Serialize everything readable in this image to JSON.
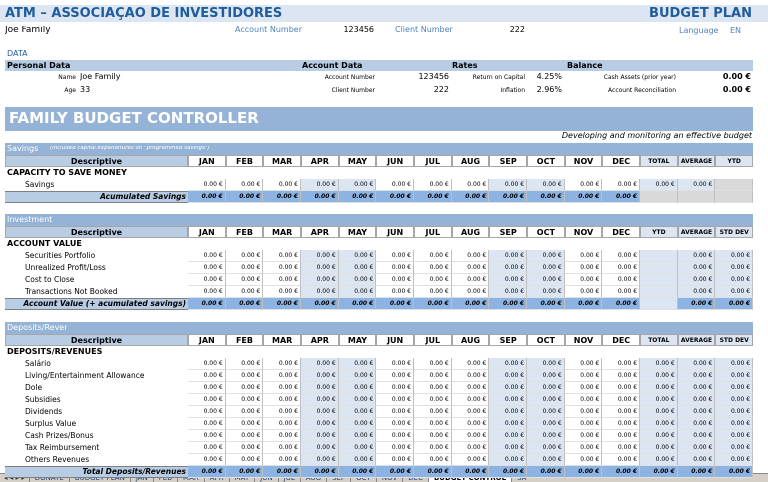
{
  "header": {
    "org": "ATM – ASSOCIAÇÃO DE INVESTIDORES",
    "plan": "BUDGET PLAN",
    "family": "Joe Family",
    "account_label": "Account Number",
    "account_number": "123456",
    "client_label": "Client Number",
    "client_number": "222",
    "language_label": "Language",
    "language": "EN"
  },
  "data": {
    "title": "DATA",
    "headers": [
      "Personal Data",
      "Account Data",
      "Rates",
      "Balance"
    ],
    "personal": [
      [
        "Name",
        "Joe Family"
      ],
      [
        "Age",
        "33"
      ]
    ],
    "account": [
      [
        "Account Number",
        "123456"
      ],
      [
        "Client Number",
        "222"
      ]
    ],
    "rates": [
      [
        "Return on Capital",
        "4.25%"
      ],
      [
        "Inflation",
        "2.96%"
      ]
    ],
    "balance": [
      [
        "Cash Assets (prior year)",
        "0.00 €"
      ],
      [
        "Account Reconciliation",
        "0.00 €"
      ]
    ]
  },
  "controller": {
    "title": "FAMILY BUDGET CONTROLLER",
    "subtitle": "Developing and monitoring an effective budget",
    "sections": [
      {
        "title": "Savings",
        "note": "(included capital expenditures on \"programmed savings\")",
        "header": [
          "Descriptive",
          "JAN",
          "FEB",
          "MAR",
          "APR",
          "MAY",
          "JUN",
          "JUL",
          "AUG",
          "SEP",
          "OCT",
          "NOV",
          "DEC",
          "TOTAL",
          "AVERAGE",
          "YTD"
        ],
        "group": "CAPACITY TO SAVE MONEY",
        "rows": [
          {
            "label": "Savings",
            "cells": [
              "0.00 €",
              "0.00 €",
              "0.00 €",
              "0.00 €",
              "0.00 €",
              "0.00 €",
              "0.00 €",
              "0.00 €",
              "0.00 €",
              "0.00 €",
              "0.00 €",
              "0.00 €",
              "0.00 €",
              "0.00 €",
              null
            ]
          }
        ],
        "total": {
          "label": "Acumulated Savings",
          "cells": [
            "0.00 €",
            "0.00 €",
            "0.00 €",
            "0.00 €",
            "0.00 €",
            "0.00 €",
            "0.00 €",
            "0.00 €",
            "0.00 €",
            "0.00 €",
            "0.00 €",
            "0.00 €",
            null,
            null,
            null
          ]
        }
      },
      {
        "title": "Investment",
        "header": [
          "Descriptive",
          "JAN",
          "FEB",
          "MAR",
          "APR",
          "MAY",
          "JUN",
          "JUL",
          "AUG",
          "SEP",
          "OCT",
          "NOV",
          "DEC",
          "YTD",
          "AVERAGE",
          "STD DEV"
        ],
        "group": "ACCOUNT VALUE",
        "rows": [
          {
            "label": "Securities Portfolio",
            "cells": [
              "0.00 €",
              "0.00 €",
              "0.00 €",
              "0.00 €",
              "0.00 €",
              "0.00 €",
              "0.00 €",
              "0.00 €",
              "0.00 €",
              "0.00 €",
              "0.00 €",
              "0.00 €",
              null,
              "0.00 €",
              "0.00 €"
            ]
          },
          {
            "label": "Unrealized Profit/Loss",
            "cells": [
              "0.00 €",
              "0.00 €",
              "0.00 €",
              "0.00 €",
              "0.00 €",
              "0.00 €",
              "0.00 €",
              "0.00 €",
              "0.00 €",
              "0.00 €",
              "0.00 €",
              "0.00 €",
              null,
              "0.00 €",
              "0.00 €"
            ]
          },
          {
            "label": "Cost to Close",
            "cells": [
              "0.00 €",
              "0.00 €",
              "0.00 €",
              "0.00 €",
              "0.00 €",
              "0.00 €",
              "0.00 €",
              "0.00 €",
              "0.00 €",
              "0.00 €",
              "0.00 €",
              "0.00 €",
              null,
              "0.00 €",
              "0.00 €"
            ]
          },
          {
            "label": "Transactions Not Booked",
            "cells": [
              "0.00 €",
              "0.00 €",
              "0.00 €",
              "0.00 €",
              "0.00 €",
              "0.00 €",
              "0.00 €",
              "0.00 €",
              "0.00 €",
              "0.00 €",
              "0.00 €",
              "0.00 €",
              null,
              "0.00 €",
              "0.00 €"
            ]
          }
        ],
        "total": {
          "label": "Account Value (+ acumulated savings)",
          "cells": [
            "0.00 €",
            "0.00 €",
            "0.00 €",
            "0.00 €",
            "0.00 €",
            "0.00 €",
            "0.00 €",
            "0.00 €",
            "0.00 €",
            "0.00 €",
            "0.00 €",
            "0.00 €",
            null,
            "0.00 €",
            "0.00 €"
          ]
        }
      },
      {
        "title": "Deposits/Revenues",
        "header": [
          "Descriptive",
          "JAN",
          "FEB",
          "MAR",
          "APR",
          "MAY",
          "JUN",
          "JUL",
          "AUG",
          "SEP",
          "OCT",
          "NOV",
          "DEC",
          "TOTAL",
          "AVERAGE",
          "STD DEV"
        ],
        "group": "DEPOSITS/REVENUES",
        "rows": [
          {
            "label": "Salário",
            "cells": [
              "0.00 €",
              "0.00 €",
              "0.00 €",
              "0.00 €",
              "0.00 €",
              "0.00 €",
              "0.00 €",
              "0.00 €",
              "0.00 €",
              "0.00 €",
              "0.00 €",
              "0.00 €",
              "0.00 €",
              "0.00 €",
              "0.00 €"
            ]
          },
          {
            "label": "Living/Entertainment Allowance",
            "cells": [
              "0.00 €",
              "0.00 €",
              "0.00 €",
              "0.00 €",
              "0.00 €",
              "0.00 €",
              "0.00 €",
              "0.00 €",
              "0.00 €",
              "0.00 €",
              "0.00 €",
              "0.00 €",
              "0.00 €",
              "0.00 €",
              "0.00 €"
            ]
          },
          {
            "label": "Dole",
            "cells": [
              "0.00 €",
              "0.00 €",
              "0.00 €",
              "0.00 €",
              "0.00 €",
              "0.00 €",
              "0.00 €",
              "0.00 €",
              "0.00 €",
              "0.00 €",
              "0.00 €",
              "0.00 €",
              "0.00 €",
              "0.00 €",
              "0.00 €"
            ]
          },
          {
            "label": "Subsidies",
            "cells": [
              "0.00 €",
              "0.00 €",
              "0.00 €",
              "0.00 €",
              "0.00 €",
              "0.00 €",
              "0.00 €",
              "0.00 €",
              "0.00 €",
              "0.00 €",
              "0.00 €",
              "0.00 €",
              "0.00 €",
              "0.00 €",
              "0.00 €"
            ]
          },
          {
            "label": "Dividends",
            "cells": [
              "0.00 €",
              "0.00 €",
              "0.00 €",
              "0.00 €",
              "0.00 €",
              "0.00 €",
              "0.00 €",
              "0.00 €",
              "0.00 €",
              "0.00 €",
              "0.00 €",
              "0.00 €",
              "0.00 €",
              "0.00 €",
              "0.00 €"
            ]
          },
          {
            "label": "Surplus Value",
            "cells": [
              "0.00 €",
              "0.00 €",
              "0.00 €",
              "0.00 €",
              "0.00 €",
              "0.00 €",
              "0.00 €",
              "0.00 €",
              "0.00 €",
              "0.00 €",
              "0.00 €",
              "0.00 €",
              "0.00 €",
              "0.00 €",
              "0.00 €"
            ]
          },
          {
            "label": "Cash Prizes/Bonus",
            "cells": [
              "0.00 €",
              "0.00 €",
              "0.00 €",
              "0.00 €",
              "0.00 €",
              "0.00 €",
              "0.00 €",
              "0.00 €",
              "0.00 €",
              "0.00 €",
              "0.00 €",
              "0.00 €",
              "0.00 €",
              "0.00 €",
              "0.00 €"
            ]
          },
          {
            "label": "Tax Reimbursement",
            "cells": [
              "0.00 €",
              "0.00 €",
              "0.00 €",
              "0.00 €",
              "0.00 €",
              "0.00 €",
              "0.00 €",
              "0.00 €",
              "0.00 €",
              "0.00 €",
              "0.00 €",
              "0.00 €",
              "0.00 €",
              "0.00 €",
              "0.00 €"
            ]
          },
          {
            "label": "Others Revenues",
            "cells": [
              "0.00 €",
              "0.00 €",
              "0.00 €",
              "0.00 €",
              "0.00 €",
              "0.00 €",
              "0.00 €",
              "0.00 €",
              "0.00 €",
              "0.00 €",
              "0.00 €",
              "0.00 €",
              "0.00 €",
              "0.00 €",
              "0.00 €"
            ]
          }
        ],
        "total": {
          "label": "Total Deposits/Revenues",
          "cells": [
            "0.00 €",
            "0.00 €",
            "0.00 €",
            "0.00 €",
            "0.00 €",
            "0.00 €",
            "0.00 €",
            "0.00 €",
            "0.00 €",
            "0.00 €",
            "0.00 €",
            "0.00 €",
            "0.00 €",
            "0.00 €",
            "0.00 €"
          ]
        }
      }
    ]
  },
  "tabs": [
    "DONATE",
    "BUDGET PLAN",
    "JAN",
    "FEB",
    "MAR",
    "APR",
    "MAY",
    "JUN",
    "JUL",
    "AUG",
    "SEP",
    "OCT",
    "NOV",
    "DEC",
    "BUDGET CONTROL",
    "SA"
  ],
  "active_tab": 14
}
